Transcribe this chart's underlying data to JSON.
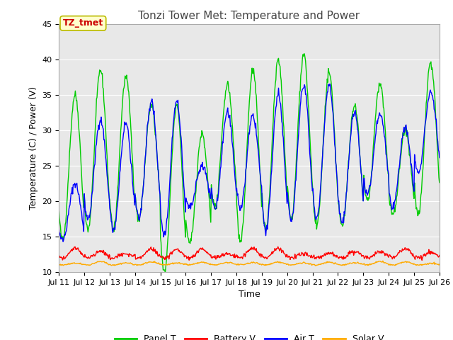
{
  "title": "Tonzi Tower Met: Temperature and Power",
  "xlabel": "Time",
  "ylabel": "Temperature (C) / Power (V)",
  "ylim": [
    10,
    45
  ],
  "xlim": [
    0,
    15
  ],
  "xtick_labels": [
    "Jul 11",
    "Jul 12",
    "Jul 13",
    "Jul 14",
    "Jul 15",
    "Jul 16",
    "Jul 17",
    "Jul 18",
    "Jul 19",
    "Jul 20",
    "Jul 21",
    "Jul 22",
    "Jul 23",
    "Jul 24",
    "Jul 25",
    "Jul 26"
  ],
  "colors": {
    "panel_t": "#00cc00",
    "battery_v": "#ff0000",
    "air_t": "#0000ff",
    "solar_v": "#ffaa00"
  },
  "legend_labels": [
    "Panel T",
    "Battery V",
    "Air T",
    "Solar V"
  ],
  "annotation_text": "TZ_tmet",
  "annotation_color": "#cc0000",
  "annotation_bg": "#ffffcc",
  "annotation_border": "#bbbb00",
  "bg_color": "#e8e8e8",
  "title_fontsize": 11,
  "label_fontsize": 9,
  "tick_fontsize": 8,
  "legend_fontsize": 9,
  "panel_peaks": [
    35.0,
    38.5,
    37.5,
    33.5,
    33.5,
    29.5,
    36.5,
    38.5,
    40.0,
    40.5,
    38.0,
    33.5,
    36.5,
    30.0,
    39.5
  ],
  "panel_troughs": [
    14.5,
    16.0,
    16.0,
    17.5,
    10.0,
    14.0,
    19.0,
    14.5,
    16.0,
    17.5,
    16.5,
    16.5,
    20.0,
    18.0,
    18.0
  ],
  "air_peaks": [
    22.5,
    31.5,
    31.0,
    34.0,
    34.0,
    25.0,
    32.5,
    32.0,
    35.0,
    36.5,
    36.5,
    32.5,
    32.5,
    30.5,
    35.5
  ],
  "air_troughs": [
    14.5,
    17.5,
    16.0,
    17.5,
    15.0,
    19.0,
    19.0,
    19.0,
    16.0,
    17.5,
    17.5,
    17.0,
    21.0,
    19.0,
    24.0
  ],
  "battery_base": 11.5,
  "solar_base": 11.0
}
